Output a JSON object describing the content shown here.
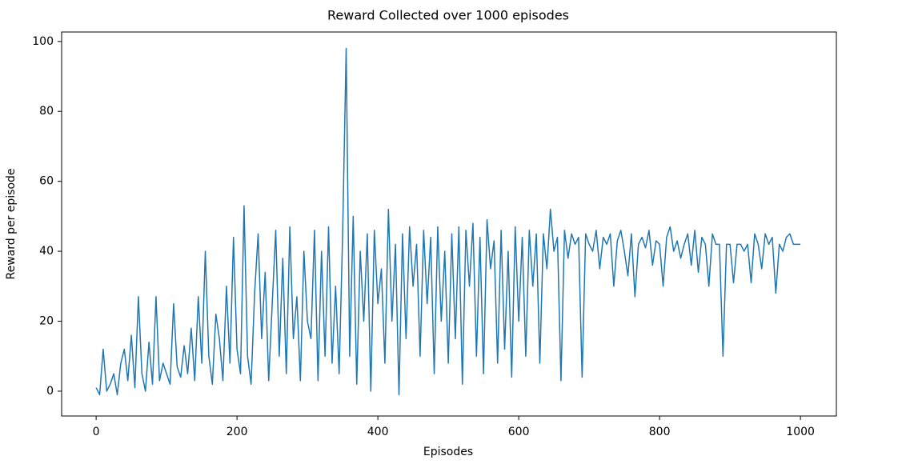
{
  "chart_data": {
    "type": "line",
    "title": "Reward Collected over 1000 episodes",
    "xlabel": "Episodes",
    "ylabel": "Reward per episode",
    "color": "#1f77b4",
    "x": [
      0,
      5,
      10,
      15,
      20,
      25,
      30,
      35,
      40,
      45,
      50,
      55,
      60,
      65,
      70,
      75,
      80,
      85,
      90,
      95,
      100,
      105,
      110,
      115,
      120,
      125,
      130,
      135,
      140,
      145,
      150,
      155,
      160,
      165,
      170,
      175,
      180,
      185,
      190,
      195,
      200,
      205,
      210,
      215,
      220,
      225,
      230,
      235,
      240,
      245,
      250,
      255,
      260,
      265,
      270,
      275,
      280,
      285,
      290,
      295,
      300,
      305,
      310,
      315,
      320,
      325,
      330,
      335,
      340,
      345,
      350,
      355,
      360,
      365,
      370,
      375,
      380,
      385,
      390,
      395,
      400,
      405,
      410,
      415,
      420,
      425,
      430,
      435,
      440,
      445,
      450,
      455,
      460,
      465,
      470,
      475,
      480,
      485,
      490,
      495,
      500,
      505,
      510,
      515,
      520,
      525,
      530,
      535,
      540,
      545,
      550,
      555,
      560,
      565,
      570,
      575,
      580,
      585,
      590,
      595,
      600,
      605,
      610,
      615,
      620,
      625,
      630,
      635,
      640,
      645,
      650,
      655,
      660,
      665,
      670,
      675,
      680,
      685,
      690,
      695,
      700,
      705,
      710,
      715,
      720,
      725,
      730,
      735,
      740,
      745,
      750,
      755,
      760,
      765,
      770,
      775,
      780,
      785,
      790,
      795,
      800,
      805,
      810,
      815,
      820,
      825,
      830,
      835,
      840,
      845,
      850,
      855,
      860,
      865,
      870,
      875,
      880,
      885,
      890,
      895,
      900,
      905,
      910,
      915,
      920,
      925,
      930,
      935,
      940,
      945,
      950,
      955,
      960,
      965,
      970,
      975,
      980,
      985,
      990,
      995,
      1000
    ],
    "values": [
      1,
      -1,
      12,
      0,
      2,
      5,
      -1,
      8,
      12,
      3,
      16,
      1,
      27,
      5,
      0,
      14,
      2,
      27,
      3,
      8,
      5,
      2,
      25,
      7,
      4,
      13,
      5,
      18,
      3,
      27,
      8,
      40,
      10,
      2,
      22,
      15,
      3,
      30,
      8,
      44,
      12,
      5,
      53,
      10,
      2,
      28,
      45,
      15,
      34,
      3,
      25,
      46,
      10,
      38,
      5,
      47,
      15,
      27,
      3,
      40,
      20,
      15,
      46,
      3,
      40,
      10,
      47,
      8,
      30,
      5,
      45,
      98,
      10,
      50,
      2,
      40,
      20,
      45,
      0,
      46,
      25,
      35,
      8,
      52,
      20,
      42,
      -1,
      45,
      15,
      47,
      30,
      42,
      10,
      46,
      25,
      44,
      5,
      47,
      20,
      40,
      8,
      45,
      15,
      47,
      2,
      46,
      30,
      48,
      10,
      44,
      5,
      49,
      35,
      43,
      8,
      46,
      12,
      40,
      4,
      47,
      20,
      44,
      10,
      46,
      30,
      45,
      8,
      45,
      35,
      52,
      40,
      44,
      3,
      46,
      38,
      45,
      42,
      44,
      4,
      45,
      42,
      40,
      46,
      35,
      44,
      42,
      45,
      30,
      43,
      46,
      40,
      33,
      45,
      27,
      42,
      44,
      41,
      46,
      36,
      43,
      42,
      30,
      44,
      47,
      40,
      43,
      38,
      42,
      45,
      36,
      46,
      34,
      44,
      42,
      30,
      45,
      42,
      42,
      10,
      42,
      42,
      31,
      42,
      42,
      40,
      42,
      31,
      45,
      42,
      35,
      45,
      42,
      44,
      28,
      42,
      40,
      44,
      45,
      42,
      42,
      42
    ],
    "xlim": [
      -49,
      1051
    ],
    "ylim": [
      -7.1,
      102.7
    ],
    "xticks": [
      0,
      200,
      400,
      600,
      800,
      1000
    ],
    "yticks": [
      0,
      20,
      40,
      60,
      80,
      100
    ]
  }
}
